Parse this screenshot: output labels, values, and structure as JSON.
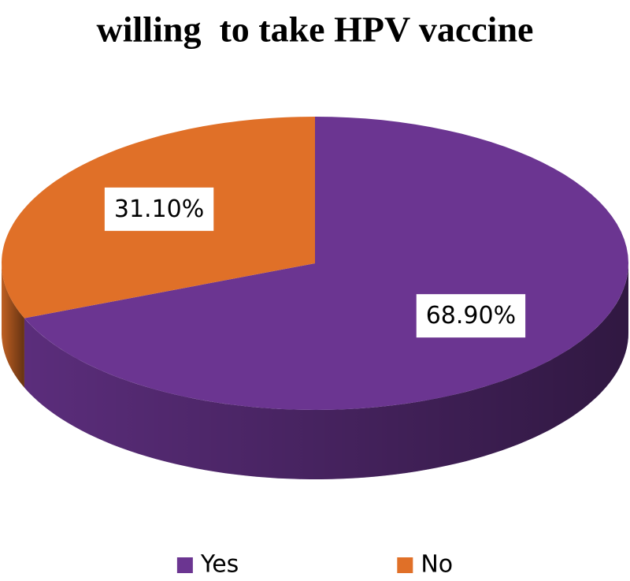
{
  "chart_data": {
    "type": "pie",
    "title": "willing  to take HPV vaccine",
    "categories": [
      "Yes",
      "No"
    ],
    "values": [
      68.9,
      31.1
    ],
    "value_labels": [
      "68.90%",
      "31.10%"
    ],
    "colors": [
      "#6b3591",
      "#e07028"
    ],
    "legend": "bottom"
  }
}
